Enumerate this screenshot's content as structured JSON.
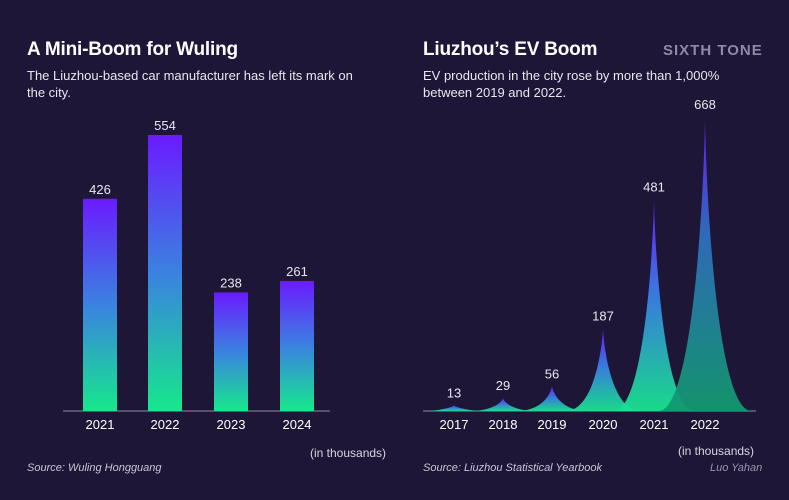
{
  "brand": "SIXTH TONE",
  "author": "Luo Yahan",
  "charts": [
    {
      "title": "A Mini-Boom for Wuling",
      "subtitle": "The Liuzhou-based car manufacturer has left its mark on the city.",
      "source": "Source: Wuling Hongguang",
      "unit": "(in thousands)"
    },
    {
      "title": "Liuzhou’s EV Boom",
      "subtitle": "EV production in the city rose by more than 1,000% between 2019 and 2022.",
      "source": "Source: Liuzhou Statistical Yearbook",
      "unit": "(in thousands)"
    }
  ],
  "chart_data": [
    {
      "type": "bar",
      "title": "A Mini-Boom for Wuling",
      "categories": [
        "2021",
        "2022",
        "2023",
        "2024"
      ],
      "values": [
        426,
        554,
        238,
        261
      ],
      "ylim": [
        0,
        554
      ],
      "grid": false,
      "colors": {
        "top": "#6a1bff",
        "bottom": "#16e88c"
      }
    },
    {
      "type": "area",
      "title": "Liuzhou’s EV Boom",
      "categories": [
        "2017",
        "2018",
        "2019",
        "2020",
        "2021",
        "2022"
      ],
      "values": [
        13,
        29,
        56,
        187,
        481,
        668
      ],
      "ylim": [
        0,
        668
      ],
      "grid": false,
      "colors": {
        "top": "#6a1bff",
        "bottom": "#16e88c"
      }
    }
  ]
}
